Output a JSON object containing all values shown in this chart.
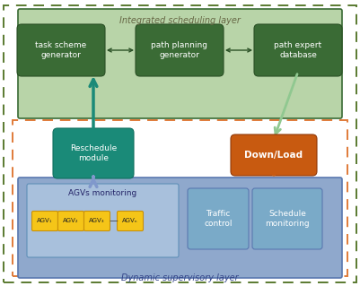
{
  "bg_color": "#ffffff",
  "outer_green_dashed_color": "#5a7a30",
  "inner_orange_dashed_color": "#e07b39",
  "green_layer_bg": "#b8d4a8",
  "blue_layer_bg": "#8fa8cc",
  "dark_green_box": "#3a6b35",
  "teal_box": "#1a8a78",
  "orange_box": "#c85a10",
  "yellow_agv": "#f5c518",
  "light_blue_inner": "#7aaac8",
  "agvs_sub_bg": "#a8c0dc",
  "title_green": "Integrated scheduling layer",
  "title_blue": "Dynamic supervisory layer",
  "box1_text": "task scheme\ngenerator",
  "box2_text": "path planning\ngenerator",
  "box3_text": "path expert\ndatabase",
  "reschedule_text": "Reschedule\nmodule",
  "download_text": "Down/Load",
  "agvs_label": "AGVs monitoring",
  "traffic_text": "Traffic\ncontrol",
  "schedule_text": "Schedule\nmonitoring",
  "agv_labels": [
    "AGV₁",
    "AGV₂",
    "AGV₃",
    "AGVₙ"
  ],
  "green_arrow_color": "#90c890",
  "teal_arrow_color": "#1a8a78",
  "blue_arrow_color": "#8098cc",
  "orange_arrow_color": "#c85a10"
}
